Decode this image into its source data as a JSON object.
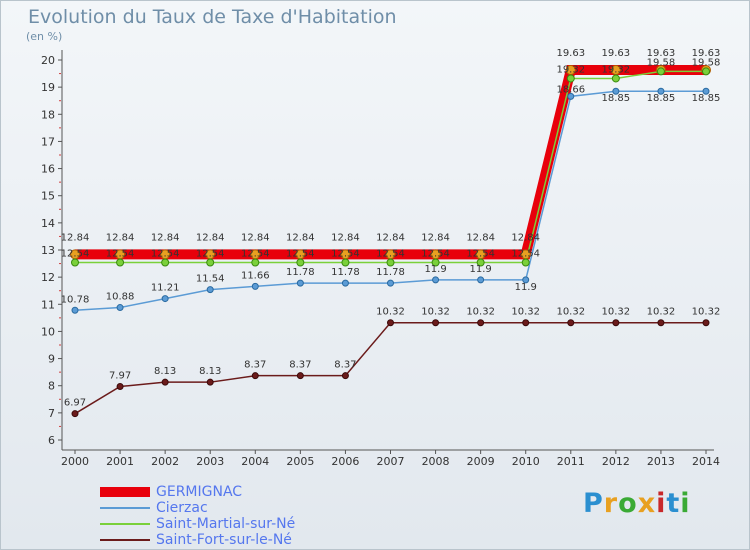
{
  "title": "Evolution du Taux de Taxe d'Habitation",
  "subtitle": "(en %)",
  "logo": {
    "text": "Proxiti",
    "colors": [
      "#2b8fd0",
      "#e8a020",
      "#3aaa35",
      "#e8a020",
      "#c8282a",
      "#2b8fd0",
      "#3aaa35"
    ]
  },
  "chart_data": {
    "type": "line",
    "x": [
      "2000",
      "2001",
      "2002",
      "2003",
      "2004",
      "2005",
      "2006",
      "2007",
      "2008",
      "2009",
      "2010",
      "2011",
      "2012",
      "2013",
      "2014"
    ],
    "ylim": [
      6,
      20
    ],
    "yticks": [
      "6",
      "7",
      "8",
      "9",
      "10",
      "11",
      "12",
      "13",
      "14",
      "15",
      "16",
      "17",
      "18",
      "19",
      "20"
    ],
    "grid": false,
    "legend_position": "bottom-left",
    "series": [
      {
        "name": "GERMIGNAC",
        "color": "#e8000b",
        "values": [
          12.84,
          12.84,
          12.84,
          12.84,
          12.84,
          12.84,
          12.84,
          12.84,
          12.84,
          12.84,
          12.84,
          19.63,
          19.63,
          19.63,
          19.63
        ],
        "labels": [
          "12.84",
          "12.84",
          "12.84",
          "12.84",
          "12.84",
          "12.84",
          "12.84",
          "12.84",
          "12.84",
          "12.84",
          "12.84",
          "19.63",
          "19.63",
          "19.63",
          "19.63"
        ]
      },
      {
        "name": "Cierzac",
        "color": "#5b9bd5",
        "values": [
          10.78,
          10.88,
          11.21,
          11.54,
          11.66,
          11.78,
          11.78,
          11.78,
          11.9,
          11.9,
          11.9,
          18.66,
          18.85,
          18.85,
          18.85
        ],
        "labels": [
          "10.78",
          "10.88",
          "11.21",
          "11.54",
          "11.66",
          "11.78",
          "11.78",
          "11.78",
          "11.9",
          "11.9",
          "11.9",
          "18.66",
          "18.85",
          "18.85",
          "18.85"
        ]
      },
      {
        "name": "Saint-Martial-sur-Né",
        "color": "#7ad03a",
        "values": [
          12.54,
          12.54,
          12.54,
          12.54,
          12.54,
          12.54,
          12.54,
          12.54,
          12.54,
          12.54,
          12.54,
          19.32,
          19.32,
          19.58,
          19.58
        ],
        "labels": [
          "12.54",
          "12.54",
          "12.54",
          "12.54",
          "12.54",
          "12.54",
          "12.54",
          "12.54",
          "12.54",
          "12.54",
          "12.54",
          "19.32",
          "19.32",
          "19.58",
          "19.58"
        ]
      },
      {
        "name": "Saint-Fort-sur-le-Né",
        "color": "#6b1b1b",
        "values": [
          6.97,
          7.97,
          8.13,
          8.13,
          8.37,
          8.37,
          8.37,
          10.32,
          10.32,
          10.32,
          10.32,
          10.32,
          10.32,
          10.32,
          10.32
        ],
        "labels": [
          "6.97",
          "7.97",
          "8.13",
          "8.13",
          "8.37",
          "8.37",
          "8.37",
          "10.32",
          "10.32",
          "10.32",
          "10.32",
          "10.32",
          "10.32",
          "10.32",
          "10.32"
        ]
      }
    ]
  }
}
